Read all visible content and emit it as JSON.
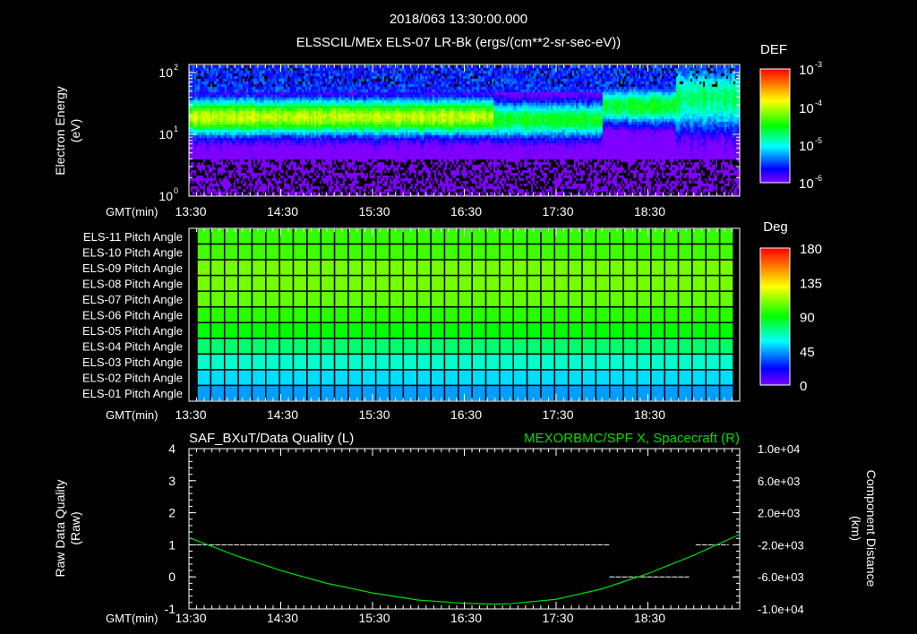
{
  "title": "2018/063 13:30:00.000",
  "chart_data": [
    {
      "type": "heatmap",
      "title": "ELSSCIL/MEx ELS-07 LR-Bk  (ergs/(cm**2-sr-sec-eV))",
      "ylabel": "Electron Energy (eV)",
      "xlabel": "GMT(min)",
      "x_ticks": [
        "13:30",
        "14:30",
        "15:30",
        "16:30",
        "17:30",
        "18:30"
      ],
      "xlim_hours": [
        13.5,
        19.5
      ],
      "y_ticks": [
        {
          "base": "10",
          "exp": "0",
          "value": 1
        },
        {
          "base": "10",
          "exp": "1",
          "value": 10
        },
        {
          "base": "10",
          "exp": "2",
          "value": 100
        }
      ],
      "ylim": [
        1,
        135
      ],
      "yscale": "log",
      "colorbar": {
        "label": "DEF",
        "scale": "log",
        "range": [
          1e-06,
          0.001
        ],
        "ticks": [
          {
            "base": "10",
            "exp": "-3"
          },
          {
            "base": "10",
            "exp": "-4"
          },
          {
            "base": "10",
            "exp": "-5"
          },
          {
            "base": "10",
            "exp": "-6"
          }
        ]
      },
      "band": [
        {
          "from_hour": 13.5,
          "to_hour": 16.8,
          "peak_energy_ev": 20,
          "peak_def": 0.0001,
          "note_level": "green"
        },
        {
          "from_hour": 16.8,
          "to_hour": 18.0,
          "peak_energy_ev": 18,
          "peak_def": 3e-05
        },
        {
          "from_hour": 18.0,
          "to_hour": 18.8,
          "peak_energy_ev": 30,
          "peak_def": 3e-05
        },
        {
          "from_hour": 18.8,
          "to_hour": 19.5,
          "peak_energy_ev": 40,
          "peak_def": 2e-05
        }
      ]
    },
    {
      "type": "heatmap",
      "xlabel": "GMT(min)",
      "x_ticks": [
        "13:30",
        "14:30",
        "15:30",
        "16:30",
        "17:30",
        "18:30"
      ],
      "rows": [
        {
          "label": "ELS-11 Pitch Angle",
          "value": 98
        },
        {
          "label": "ELS-10 Pitch Angle",
          "value": 100
        },
        {
          "label": "ELS-09 Pitch Angle",
          "value": 108
        },
        {
          "label": "ELS-08 Pitch Angle",
          "value": 108
        },
        {
          "label": "ELS-07 Pitch Angle",
          "value": 105
        },
        {
          "label": "ELS-06 Pitch Angle",
          "value": 96
        },
        {
          "label": "ELS-05 Pitch Angle",
          "value": 90
        },
        {
          "label": "ELS-04 Pitch Angle",
          "value": 76
        },
        {
          "label": "ELS-03 Pitch Angle",
          "value": 64
        },
        {
          "label": "ELS-02 Pitch Angle",
          "value": 53
        },
        {
          "label": "ELS-01 Pitch Angle",
          "value": 44
        }
      ],
      "columns": 39,
      "colorbar": {
        "label": "Deg",
        "range": [
          0,
          180
        ],
        "ticks": [
          "180",
          "135",
          "90",
          "45",
          "0"
        ]
      }
    },
    {
      "type": "line",
      "title_left": "SAF_BXuT/Data Quality (L)",
      "title_right": "MEXORBMC/SPF X, Spacecraft (R)",
      "ylabel_left": "Raw Data Quality (Raw)",
      "ylabel_right": "Component Distance (km)",
      "xlabel": "GMT(min)",
      "x_ticks": [
        "13:30",
        "14:30",
        "15:30",
        "16:30",
        "17:30",
        "18:30"
      ],
      "xlim_hours": [
        13.5,
        19.5
      ],
      "ylim_left": [
        -1,
        4
      ],
      "ylim_right": [
        -10000,
        10000
      ],
      "left_ticks": [
        "4",
        "3",
        "2",
        "1",
        "0",
        "-1"
      ],
      "right_ticks": [
        "1.0e+04",
        "6.0e+03",
        "2.0e+03",
        "-2.0e+03",
        "-6.0e+03",
        "-1.0e+04"
      ],
      "colors": {
        "quality": "#ffffff",
        "position": "#00dd00"
      },
      "quality_segments": [
        {
          "from_hour": 13.58,
          "to_hour": 18.08,
          "value": 1
        },
        {
          "from_hour": 18.08,
          "to_hour": 18.95,
          "value": 0
        },
        {
          "from_hour": 19.02,
          "to_hour": 19.38,
          "value": 1
        },
        {
          "from_hour": 19.43,
          "to_hour": 19.5,
          "value": 0
        }
      ],
      "position_km": {
        "hours": [
          13.5,
          14.0,
          14.5,
          15.0,
          15.5,
          16.0,
          16.5,
          16.83,
          17.0,
          17.5,
          18.0,
          18.5,
          19.0,
          19.5
        ],
        "values": [
          -1100,
          -3300,
          -5200,
          -6800,
          -8000,
          -8900,
          -9300,
          -9400,
          -9350,
          -8800,
          -7500,
          -5600,
          -3300,
          -700
        ]
      }
    }
  ]
}
